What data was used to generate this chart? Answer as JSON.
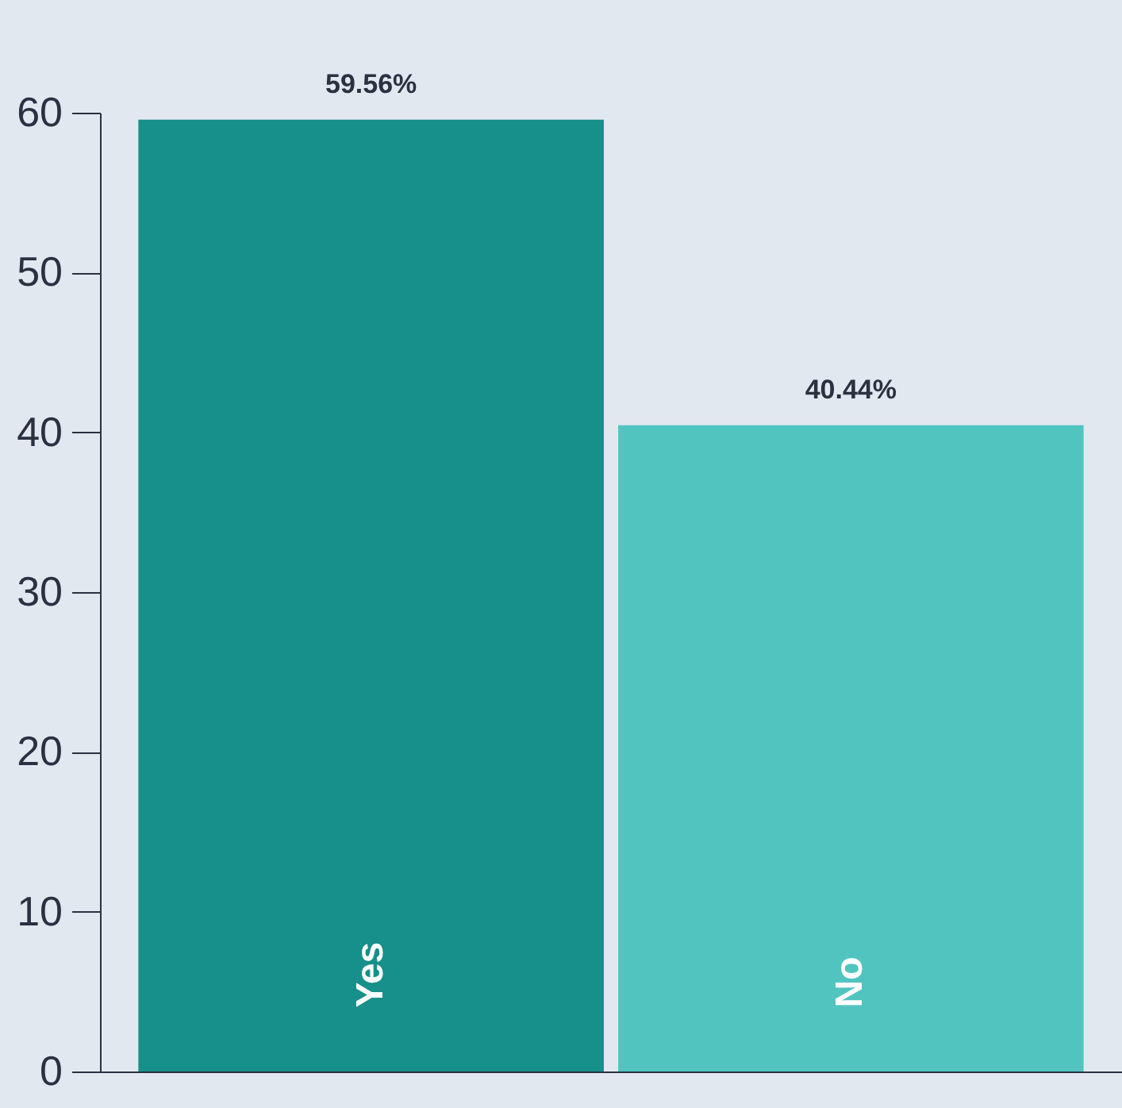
{
  "chart_data": {
    "type": "bar",
    "categories": [
      "Yes",
      "No"
    ],
    "values": [
      59.56,
      40.44
    ],
    "colors": [
      "#178f8a",
      "#52c4c0"
    ],
    "value_labels": [
      "59.56%",
      "40.44%"
    ],
    "ylim": [
      0,
      60
    ],
    "yticks": [
      0,
      10,
      20,
      30,
      40,
      50,
      60
    ],
    "grid": false
  }
}
